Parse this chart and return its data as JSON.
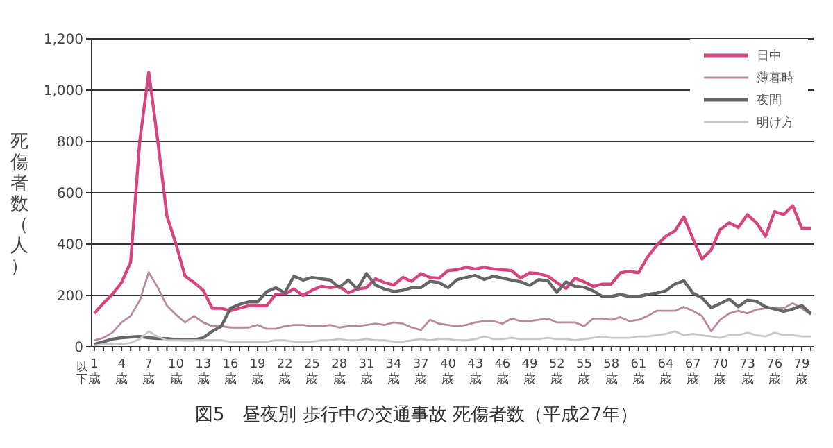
{
  "chart_data": {
    "type": "line",
    "title": "図5　昼夜別 歩行中の交通事故 死傷者数（平成27年）",
    "ylabel": "死傷者数（人）",
    "categories": [
      "1歳以下",
      null,
      null,
      "4歳",
      null,
      null,
      "7歳",
      null,
      null,
      "10歳",
      null,
      null,
      "13歳",
      null,
      null,
      "16歳",
      null,
      null,
      "19歳",
      null,
      null,
      "22歳",
      null,
      null,
      "25歳",
      null,
      null,
      "28歳",
      null,
      null,
      "31歳",
      null,
      null,
      "34歳",
      null,
      null,
      "37歳",
      null,
      null,
      "40歳",
      null,
      null,
      "43歳",
      null,
      null,
      "46歳",
      null,
      null,
      "49歳",
      null,
      null,
      "52歳",
      null,
      null,
      "55歳",
      null,
      null,
      "58歳",
      null,
      null,
      "61歳",
      null,
      null,
      "64歳",
      null,
      null,
      "67歳",
      null,
      null,
      "70歳",
      null,
      null,
      "73歳",
      null,
      null,
      "76歳",
      null,
      null,
      "79歳",
      null
    ],
    "series": [
      {
        "name": "日中",
        "color": "#d6457f",
        "values": [
          130,
          170,
          205,
          250,
          330,
          800,
          1070,
          800,
          510,
          400,
          275,
          250,
          220,
          150,
          150,
          140,
          150,
          160,
          160,
          160,
          205,
          205,
          225,
          200,
          220,
          235,
          230,
          235,
          210,
          225,
          230,
          265,
          250,
          240,
          270,
          255,
          285,
          270,
          267,
          297,
          300,
          310,
          303,
          310,
          303,
          300,
          297,
          267,
          288,
          285,
          275,
          250,
          227,
          267,
          253,
          235,
          244,
          244,
          288,
          294,
          288,
          350,
          395,
          430,
          451,
          506,
          421,
          342,
          377,
          457,
          483,
          465,
          515,
          483,
          430,
          527,
          515,
          550,
          462,
          462
        ]
      },
      {
        "name": "薄暮時",
        "color": "#b88a9c",
        "values": [
          25,
          35,
          55,
          95,
          120,
          180,
          290,
          230,
          160,
          125,
          95,
          120,
          95,
          80,
          80,
          75,
          75,
          75,
          85,
          70,
          70,
          80,
          85,
          85,
          80,
          80,
          85,
          75,
          80,
          80,
          85,
          90,
          85,
          95,
          90,
          75,
          65,
          105,
          90,
          85,
          80,
          85,
          95,
          100,
          100,
          90,
          110,
          100,
          100,
          105,
          110,
          95,
          95,
          95,
          80,
          110,
          110,
          105,
          115,
          100,
          105,
          120,
          140,
          140,
          140,
          155,
          140,
          120,
          60,
          105,
          130,
          140,
          130,
          145,
          150,
          150,
          150,
          170,
          150,
          125
        ]
      },
      {
        "name": "夜間",
        "color": "#666666",
        "values": [
          10,
          20,
          30,
          35,
          38,
          40,
          35,
          32,
          32,
          28,
          27,
          27,
          35,
          60,
          80,
          150,
          165,
          175,
          175,
          215,
          230,
          210,
          275,
          260,
          270,
          265,
          260,
          230,
          260,
          225,
          285,
          240,
          225,
          215,
          220,
          230,
          230,
          255,
          250,
          230,
          262,
          270,
          278,
          262,
          275,
          267,
          260,
          253,
          239,
          262,
          257,
          212,
          253,
          235,
          232,
          218,
          196,
          196,
          204,
          196,
          196,
          204,
          209,
          218,
          244,
          257,
          209,
          191,
          152,
          168,
          186,
          156,
          182,
          177,
          156,
          147,
          138,
          147,
          161,
          129
        ]
      },
      {
        "name": "明け方",
        "color": "#c8c8c8",
        "values": [
          5,
          10,
          10,
          10,
          15,
          30,
          60,
          40,
          25,
          25,
          25,
          25,
          25,
          25,
          25,
          20,
          20,
          20,
          20,
          20,
          25,
          25,
          20,
          20,
          20,
          25,
          25,
          30,
          25,
          25,
          30,
          25,
          25,
          20,
          20,
          25,
          30,
          25,
          30,
          30,
          25,
          25,
          30,
          40,
          30,
          30,
          35,
          30,
          30,
          30,
          35,
          30,
          30,
          25,
          30,
          35,
          40,
          35,
          35,
          35,
          40,
          40,
          45,
          50,
          60,
          45,
          50,
          45,
          40,
          35,
          45,
          45,
          55,
          45,
          40,
          55,
          45,
          45,
          40,
          40
        ]
      }
    ],
    "ylim": [
      0,
      1200
    ],
    "yticks": [
      0,
      200,
      400,
      600,
      800,
      {
        "value": 1000,
        "label": "1,000"
      },
      {
        "value": 1200,
        "label": "1,200"
      }
    ],
    "grid": "y",
    "legend": "top right",
    "marker": "none",
    "line_style": "solid"
  }
}
